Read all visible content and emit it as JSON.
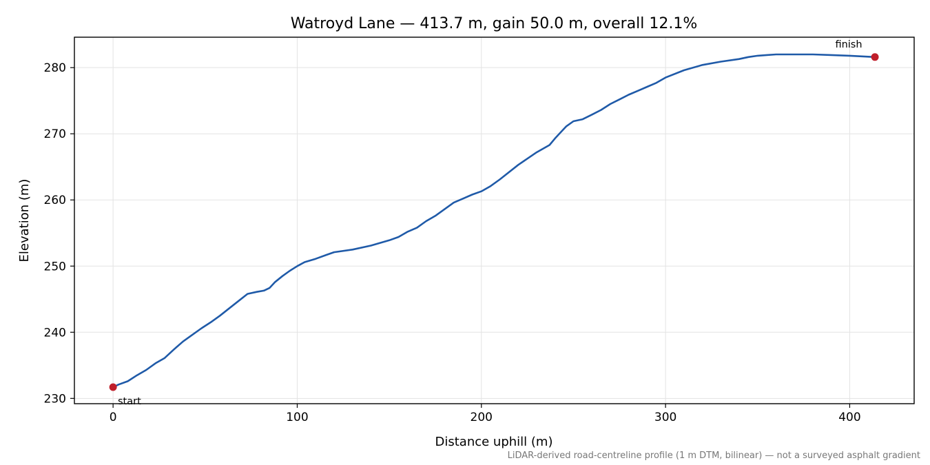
{
  "chart_data": {
    "type": "line",
    "title": "Watroyd Lane — 413.7 m, gain 50.0 m, overall 12.1%",
    "xlabel": "Distance uphill (m)",
    "ylabel": "Elevation (m)",
    "xlim": [
      -21,
      435
    ],
    "ylim": [
      229.2,
      284.6
    ],
    "x_ticks": [
      0,
      100,
      200,
      300,
      400
    ],
    "y_ticks": [
      230,
      240,
      250,
      260,
      270,
      280
    ],
    "x_tick_labels": [
      "0",
      "100",
      "200",
      "300",
      "400"
    ],
    "y_tick_labels": [
      "230",
      "240",
      "250",
      "260",
      "270",
      "280"
    ],
    "grid": true,
    "line_color": "#1f5aa8",
    "marker_color": "#c01f2b",
    "series": [
      {
        "name": "",
        "x": [
          0,
          3,
          8,
          13,
          18,
          23,
          28,
          33,
          38,
          43,
          48,
          53,
          58,
          63,
          68,
          73,
          78,
          82,
          85,
          88,
          92,
          96,
          100,
          104,
          110,
          116,
          120,
          130,
          140,
          150,
          155,
          160,
          165,
          170,
          175,
          180,
          185,
          190,
          195,
          200,
          205,
          210,
          220,
          230,
          237,
          240,
          243,
          246,
          250,
          255,
          260,
          265,
          270,
          275,
          280,
          285,
          290,
          295,
          300,
          310,
          320,
          330,
          340,
          345,
          350,
          355,
          360,
          370,
          380,
          390,
          400,
          413.7
        ],
        "y": [
          231.7,
          232.1,
          232.6,
          233.5,
          234.3,
          235.3,
          236.1,
          237.4,
          238.6,
          239.6,
          240.6,
          241.5,
          242.5,
          243.6,
          244.7,
          245.8,
          246.1,
          246.3,
          246.7,
          247.6,
          248.5,
          249.3,
          250.0,
          250.6,
          251.1,
          251.7,
          252.1,
          252.5,
          253.1,
          253.9,
          254.4,
          255.2,
          255.8,
          256.8,
          257.6,
          258.6,
          259.6,
          260.2,
          260.8,
          261.3,
          262.1,
          263.1,
          265.3,
          267.2,
          268.3,
          269.3,
          270.2,
          271.1,
          271.9,
          272.2,
          272.9,
          273.6,
          274.5,
          275.2,
          275.9,
          276.5,
          277.1,
          277.7,
          278.5,
          279.6,
          280.4,
          280.9,
          281.3,
          281.6,
          281.8,
          281.9,
          282.0,
          282.0,
          282.0,
          281.9,
          281.8,
          281.6
        ]
      }
    ],
    "annotations": [
      {
        "text": "start",
        "x": 0,
        "y": 231.7
      },
      {
        "text": "finish",
        "x": 413.7,
        "y": 281.6
      }
    ],
    "footnote": "LiDAR-derived road-centreline profile (1 m DTM, bilinear) — not a surveyed asphalt gradient"
  }
}
